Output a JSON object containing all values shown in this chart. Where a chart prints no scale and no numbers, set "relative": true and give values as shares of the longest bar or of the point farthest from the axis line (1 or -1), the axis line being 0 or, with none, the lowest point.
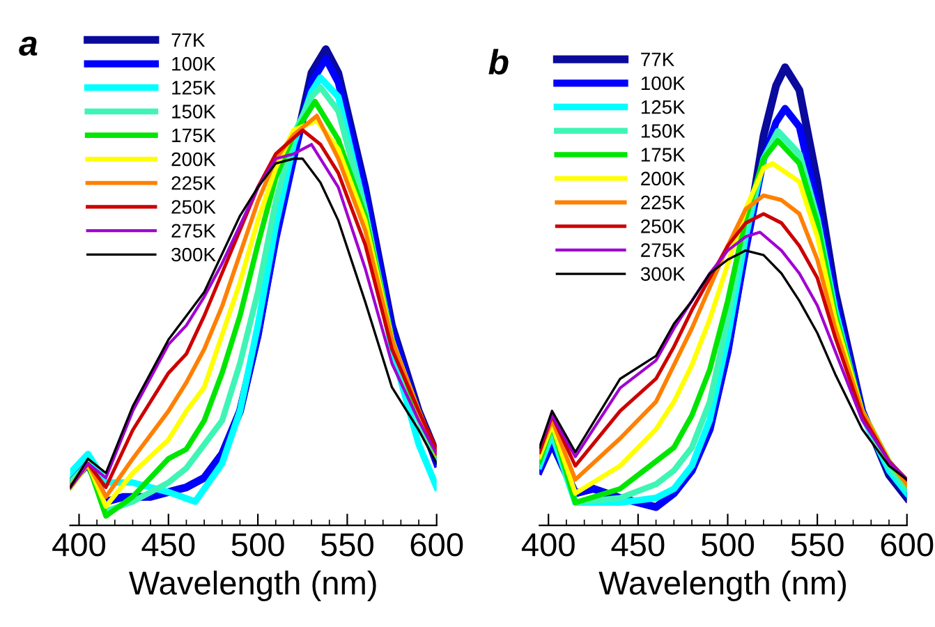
{
  "chart_data": [
    {
      "type": "line",
      "title": "a",
      "xlabel": "Wavelength (nm)",
      "xlim": [
        395,
        600
      ],
      "xticks": [
        400,
        450,
        500,
        550,
        600
      ],
      "relative": true,
      "legend": "top left",
      "series": [
        {
          "name": "77K",
          "color": "#0a0a9c",
          "x": [
            395,
            405,
            415,
            425,
            440,
            460,
            470,
            480,
            490,
            500,
            510,
            520,
            530,
            538,
            545,
            560,
            575,
            590,
            600
          ],
          "values": [
            0.09,
            0.13,
            0.05,
            0.06,
            0.06,
            0.08,
            0.1,
            0.15,
            0.24,
            0.4,
            0.61,
            0.78,
            0.95,
            1.0,
            0.95,
            0.71,
            0.42,
            0.24,
            0.15
          ]
        },
        {
          "name": "100K",
          "color": "#0000ff",
          "x": [
            395,
            405,
            415,
            425,
            440,
            460,
            470,
            480,
            490,
            500,
            510,
            520,
            530,
            538,
            545,
            560,
            575,
            590,
            600
          ],
          "values": [
            0.09,
            0.13,
            0.05,
            0.06,
            0.06,
            0.08,
            0.1,
            0.15,
            0.24,
            0.4,
            0.6,
            0.77,
            0.93,
            0.98,
            0.93,
            0.7,
            0.41,
            0.23,
            0.13
          ]
        },
        {
          "name": "125K",
          "color": "#00ffff",
          "x": [
            395,
            405,
            415,
            430,
            450,
            465,
            480,
            490,
            500,
            510,
            520,
            530,
            535,
            545,
            560,
            575,
            590,
            600
          ],
          "values": [
            0.11,
            0.15,
            0.09,
            0.09,
            0.07,
            0.05,
            0.13,
            0.24,
            0.42,
            0.63,
            0.8,
            0.91,
            0.94,
            0.9,
            0.66,
            0.37,
            0.17,
            0.08
          ]
        },
        {
          "name": "150K",
          "color": "#3ff5b5",
          "x": [
            395,
            405,
            415,
            430,
            450,
            460,
            470,
            480,
            490,
            500,
            510,
            520,
            530,
            535,
            545,
            560,
            575,
            590,
            600
          ],
          "values": [
            0.09,
            0.13,
            0.03,
            0.05,
            0.09,
            0.12,
            0.17,
            0.22,
            0.34,
            0.49,
            0.68,
            0.82,
            0.9,
            0.92,
            0.87,
            0.66,
            0.39,
            0.22,
            0.14
          ]
        },
        {
          "name": "175K",
          "color": "#00e600",
          "x": [
            395,
            405,
            415,
            430,
            450,
            460,
            470,
            480,
            490,
            500,
            510,
            520,
            532,
            545,
            560,
            575,
            590,
            600
          ],
          "values": [
            0.08,
            0.13,
            0.02,
            0.06,
            0.14,
            0.16,
            0.22,
            0.32,
            0.44,
            0.59,
            0.73,
            0.82,
            0.89,
            0.81,
            0.65,
            0.39,
            0.23,
            0.15
          ]
        },
        {
          "name": "200K",
          "color": "#ffff00",
          "x": [
            395,
            405,
            415,
            430,
            450,
            460,
            470,
            480,
            490,
            500,
            510,
            520,
            533,
            545,
            560,
            575,
            590,
            600
          ],
          "values": [
            0.08,
            0.13,
            0.04,
            0.11,
            0.18,
            0.24,
            0.29,
            0.4,
            0.51,
            0.64,
            0.75,
            0.83,
            0.85,
            0.79,
            0.64,
            0.39,
            0.24,
            0.15
          ]
        },
        {
          "name": "225K",
          "color": "#ff8000",
          "x": [
            395,
            405,
            415,
            430,
            450,
            460,
            470,
            480,
            490,
            500,
            510,
            520,
            533,
            545,
            560,
            575,
            590,
            600
          ],
          "values": [
            0.08,
            0.13,
            0.06,
            0.14,
            0.24,
            0.3,
            0.37,
            0.46,
            0.57,
            0.68,
            0.77,
            0.82,
            0.86,
            0.77,
            0.62,
            0.39,
            0.24,
            0.15
          ]
        },
        {
          "name": "250K",
          "color": "#cc0000",
          "x": [
            395,
            405,
            415,
            430,
            450,
            460,
            470,
            480,
            490,
            500,
            510,
            525,
            535,
            545,
            560,
            575,
            590,
            600
          ],
          "values": [
            0.08,
            0.13,
            0.08,
            0.2,
            0.32,
            0.36,
            0.44,
            0.53,
            0.62,
            0.71,
            0.78,
            0.83,
            0.8,
            0.74,
            0.59,
            0.37,
            0.24,
            0.16
          ]
        },
        {
          "name": "275K",
          "color": "#a000d0",
          "x": [
            395,
            405,
            415,
            430,
            450,
            460,
            470,
            480,
            490,
            500,
            510,
            520,
            530,
            545,
            560,
            575,
            590,
            600
          ],
          "values": [
            0.08,
            0.13,
            0.1,
            0.24,
            0.38,
            0.42,
            0.48,
            0.55,
            0.63,
            0.71,
            0.77,
            0.78,
            0.8,
            0.71,
            0.54,
            0.34,
            0.22,
            0.15
          ]
        },
        {
          "name": "300K",
          "color": "#000000",
          "x": [
            395,
            405,
            415,
            430,
            450,
            460,
            470,
            480,
            490,
            500,
            510,
            520,
            525,
            535,
            545,
            560,
            575,
            590,
            600
          ],
          "values": [
            0.08,
            0.14,
            0.11,
            0.25,
            0.39,
            0.44,
            0.49,
            0.57,
            0.65,
            0.71,
            0.76,
            0.77,
            0.77,
            0.72,
            0.64,
            0.47,
            0.29,
            0.2,
            0.13
          ]
        }
      ]
    },
    {
      "type": "line",
      "title": "b",
      "xlabel": "Wavelength (nm)",
      "xlim": [
        395,
        600
      ],
      "xticks": [
        400,
        450,
        500,
        550,
        600
      ],
      "relative": true,
      "legend": "top left",
      "series": [
        {
          "name": "77K",
          "color": "#0a0a9c",
          "x": [
            395,
            402,
            415,
            425,
            440,
            460,
            470,
            480,
            490,
            500,
            510,
            520,
            527,
            532,
            540,
            550,
            560,
            575,
            590,
            600
          ],
          "values": [
            0.12,
            0.18,
            0.07,
            0.08,
            0.06,
            0.04,
            0.07,
            0.12,
            0.21,
            0.38,
            0.61,
            0.85,
            0.96,
            1.0,
            0.95,
            0.75,
            0.51,
            0.25,
            0.11,
            0.06
          ]
        },
        {
          "name": "100K",
          "color": "#0000ff",
          "x": [
            395,
            402,
            415,
            425,
            440,
            460,
            470,
            480,
            490,
            500,
            510,
            520,
            527,
            532,
            540,
            550,
            560,
            575,
            590,
            600
          ],
          "values": [
            0.12,
            0.18,
            0.07,
            0.08,
            0.06,
            0.04,
            0.07,
            0.12,
            0.21,
            0.38,
            0.6,
            0.8,
            0.88,
            0.91,
            0.87,
            0.7,
            0.49,
            0.25,
            0.12,
            0.07
          ]
        },
        {
          "name": "125K",
          "color": "#00ffff",
          "x": [
            395,
            402,
            415,
            440,
            460,
            470,
            480,
            490,
            500,
            510,
            520,
            528,
            540,
            550,
            560,
            575,
            590,
            600
          ],
          "values": [
            0.13,
            0.2,
            0.05,
            0.05,
            0.06,
            0.08,
            0.13,
            0.23,
            0.41,
            0.63,
            0.8,
            0.86,
            0.81,
            0.67,
            0.47,
            0.24,
            0.12,
            0.07
          ]
        },
        {
          "name": "150K",
          "color": "#3ff5b5",
          "x": [
            395,
            402,
            415,
            440,
            460,
            470,
            480,
            490,
            500,
            510,
            520,
            528,
            540,
            550,
            560,
            575,
            590,
            600
          ],
          "values": [
            0.14,
            0.21,
            0.05,
            0.06,
            0.09,
            0.12,
            0.17,
            0.27,
            0.45,
            0.65,
            0.8,
            0.86,
            0.81,
            0.67,
            0.46,
            0.24,
            0.13,
            0.08
          ]
        },
        {
          "name": "175K",
          "color": "#00e600",
          "x": [
            395,
            402,
            415,
            440,
            460,
            470,
            480,
            490,
            500,
            510,
            520,
            528,
            540,
            550,
            560,
            575,
            590,
            600
          ],
          "values": [
            0.14,
            0.22,
            0.05,
            0.08,
            0.14,
            0.17,
            0.24,
            0.34,
            0.49,
            0.67,
            0.8,
            0.84,
            0.79,
            0.66,
            0.46,
            0.25,
            0.14,
            0.09
          ]
        },
        {
          "name": "200K",
          "color": "#ffff00",
          "x": [
            395,
            402,
            415,
            440,
            460,
            470,
            480,
            490,
            500,
            510,
            520,
            525,
            540,
            550,
            560,
            575,
            590,
            600
          ],
          "values": [
            0.15,
            0.22,
            0.07,
            0.13,
            0.21,
            0.27,
            0.35,
            0.45,
            0.57,
            0.69,
            0.78,
            0.79,
            0.75,
            0.63,
            0.45,
            0.25,
            0.14,
            0.09
          ]
        },
        {
          "name": "225K",
          "color": "#ff8000",
          "x": [
            395,
            402,
            415,
            440,
            460,
            470,
            480,
            490,
            500,
            510,
            520,
            530,
            540,
            550,
            560,
            575,
            590,
            600
          ],
          "values": [
            0.16,
            0.23,
            0.1,
            0.19,
            0.27,
            0.35,
            0.43,
            0.52,
            0.61,
            0.69,
            0.72,
            0.71,
            0.68,
            0.58,
            0.43,
            0.25,
            0.14,
            0.09
          ]
        },
        {
          "name": "250K",
          "color": "#cc0000",
          "x": [
            395,
            402,
            415,
            440,
            460,
            470,
            480,
            490,
            500,
            510,
            520,
            530,
            540,
            550,
            560,
            575,
            590,
            600
          ],
          "values": [
            0.16,
            0.24,
            0.13,
            0.25,
            0.32,
            0.39,
            0.47,
            0.54,
            0.61,
            0.66,
            0.68,
            0.66,
            0.61,
            0.54,
            0.41,
            0.24,
            0.14,
            0.1
          ]
        },
        {
          "name": "275K",
          "color": "#a000d0",
          "x": [
            395,
            402,
            415,
            440,
            460,
            470,
            480,
            490,
            500,
            510,
            518,
            530,
            540,
            550,
            560,
            575,
            590,
            600
          ],
          "values": [
            0.17,
            0.24,
            0.15,
            0.3,
            0.36,
            0.43,
            0.49,
            0.55,
            0.6,
            0.63,
            0.64,
            0.6,
            0.55,
            0.48,
            0.38,
            0.23,
            0.14,
            0.1
          ]
        },
        {
          "name": "300K",
          "color": "#000000",
          "x": [
            395,
            402,
            415,
            440,
            460,
            470,
            480,
            490,
            500,
            510,
            520,
            530,
            540,
            550,
            560,
            575,
            590,
            600
          ],
          "values": [
            0.17,
            0.25,
            0.16,
            0.32,
            0.37,
            0.44,
            0.49,
            0.55,
            0.58,
            0.6,
            0.59,
            0.55,
            0.49,
            0.42,
            0.33,
            0.21,
            0.13,
            0.1
          ]
        }
      ]
    }
  ]
}
